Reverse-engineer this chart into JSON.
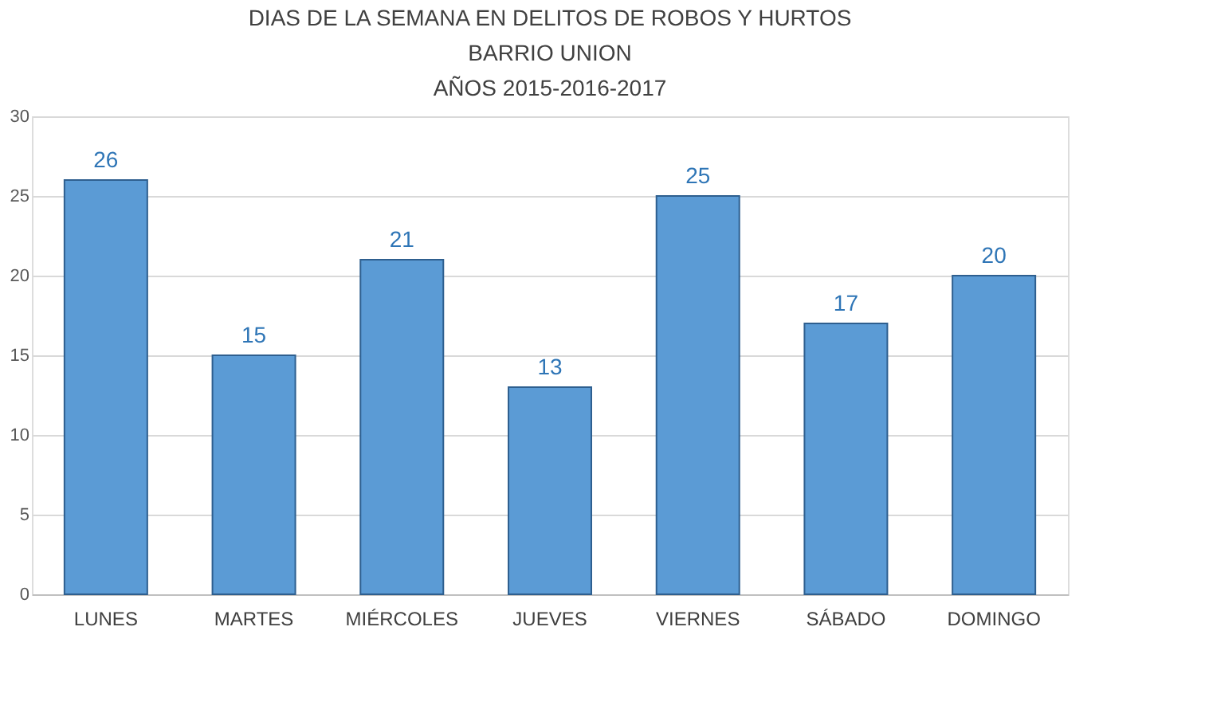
{
  "chart_data": {
    "type": "bar",
    "title": "DIAS DE LA SEMANA EN DELITOS DE ROBOS Y HURTOS\nBARRIO UNION\nAÑOS 2015-2016-2017",
    "categories": [
      "LUNES",
      "MARTES",
      "MIÉRCOLES",
      "JUEVES",
      "VIERNES",
      "SÁBADO",
      "DOMINGO"
    ],
    "values": [
      26,
      15,
      21,
      13,
      25,
      17,
      20
    ],
    "color": "#5b9bd5",
    "ylim": [
      0,
      30
    ],
    "yticks": [
      0,
      5,
      10,
      15,
      20,
      25,
      30
    ],
    "grid": "y",
    "data_labels": true
  }
}
